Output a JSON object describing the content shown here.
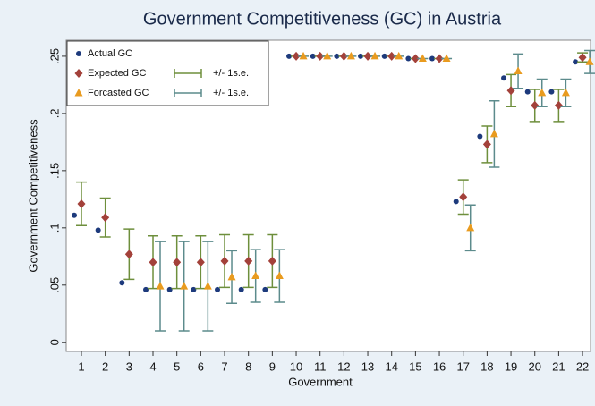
{
  "chart_data": {
    "type": "scatter",
    "title": "Government Competitiveness (GC) in Austria",
    "xlabel": "Government",
    "ylabel": "Government Competitiveness",
    "categories": [
      "1",
      "2",
      "3",
      "4",
      "5",
      "6",
      "7",
      "8",
      "9",
      "10",
      "11",
      "12",
      "13",
      "14",
      "15",
      "16",
      "17",
      "18",
      "19",
      "20",
      "21",
      "22"
    ],
    "ylim": [
      -0.008,
      0.264
    ],
    "yticks": [
      0,
      {
        "value": 0.05,
        "label": ".05"
      },
      {
        "value": 0.1,
        "label": ".1"
      },
      {
        "value": 0.15,
        "label": ".15"
      },
      {
        "value": 0.2,
        "label": ".2"
      },
      {
        "value": 0.25,
        "label": ".25"
      }
    ],
    "series": [
      {
        "name": "Actual GC",
        "color": "#1d3a7c",
        "marker": "circle",
        "values": [
          0.111,
          0.098,
          0.052,
          0.046,
          0.046,
          0.046,
          0.046,
          0.046,
          0.046,
          0.25,
          0.25,
          0.25,
          0.25,
          0.25,
          0.248,
          0.248,
          0.123,
          0.18,
          0.231,
          0.219,
          0.219,
          0.245
        ]
      },
      {
        "name": "Expected GC",
        "color": "#a3413a",
        "marker": "diamond",
        "error_label": "+/- 1s.e.",
        "error_color": "#6e8f3c",
        "values": [
          0.121,
          0.109,
          0.077,
          0.07,
          0.07,
          0.07,
          0.071,
          0.071,
          0.071,
          0.25,
          0.25,
          0.25,
          0.25,
          0.25,
          0.248,
          0.248,
          0.127,
          0.173,
          0.22,
          0.207,
          0.207,
          0.249
        ],
        "errors": [
          0.019,
          0.017,
          0.022,
          0.023,
          0.023,
          0.023,
          0.023,
          0.023,
          0.023,
          0,
          0,
          0,
          0,
          0,
          0,
          0,
          0.015,
          0.016,
          0.014,
          0.014,
          0.014,
          0.004
        ]
      },
      {
        "name": "Forcasted GC",
        "color": "#e99b1f",
        "marker": "triangle",
        "error_label": "+/- 1s.e.",
        "error_color": "#5c8b8c",
        "values": [
          null,
          null,
          null,
          0.049,
          0.049,
          0.049,
          0.057,
          0.058,
          0.058,
          0.25,
          0.25,
          0.25,
          0.25,
          0.25,
          0.248,
          0.248,
          0.1,
          0.182,
          0.237,
          0.218,
          0.218,
          0.245
        ],
        "errors": [
          null,
          null,
          null,
          0.039,
          0.039,
          0.039,
          0.023,
          0.023,
          0.023,
          0,
          0,
          0,
          0,
          0,
          0,
          0,
          0.02,
          0.029,
          0.015,
          0.012,
          0.012,
          0.01
        ]
      }
    ]
  }
}
